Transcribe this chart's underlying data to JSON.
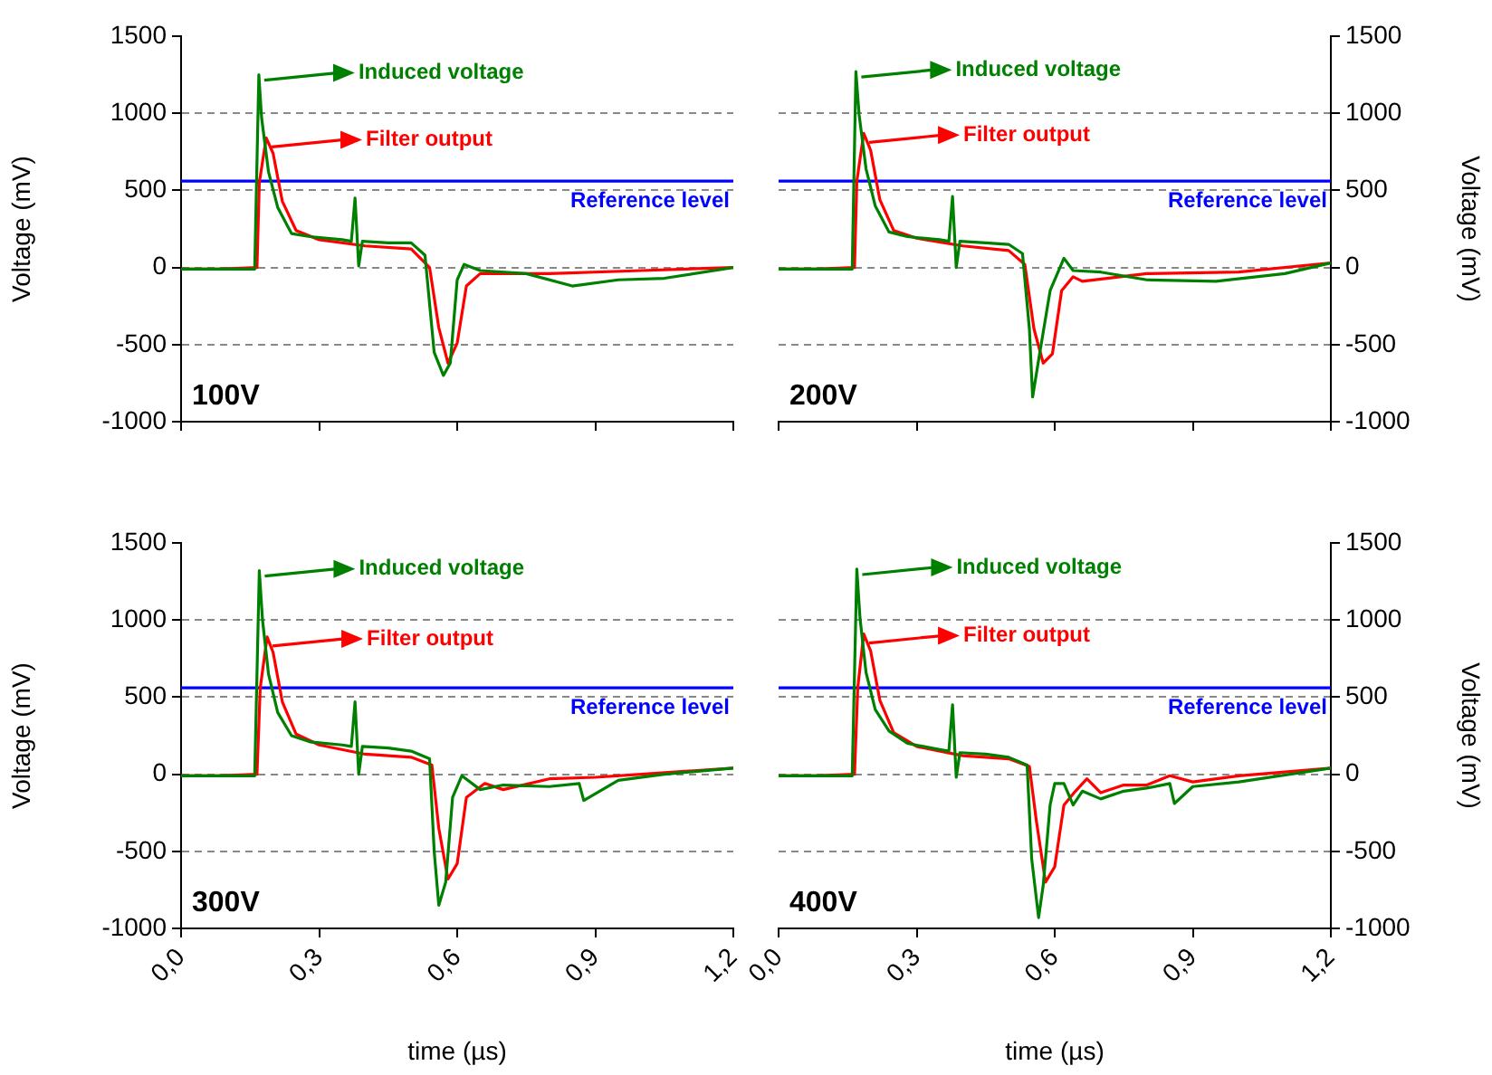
{
  "chart_data": [
    {
      "type": "line",
      "ylabel": "Voltage (mV)",
      "xlim": [
        0,
        1.2
      ],
      "xticks": [
        {
          "value": 0,
          "label": null
        },
        {
          "value": 0.3,
          "label": null
        },
        {
          "value": 0.6,
          "label": null
        },
        {
          "value": 0.9,
          "label": null
        },
        {
          "value": 1.2,
          "label": null
        }
      ],
      "ylim": [
        -1000,
        1500
      ],
      "yticks": [
        -1000,
        -500,
        0,
        500,
        1000,
        1500
      ],
      "tick_labels": "y",
      "grid": "y",
      "legend": "top left",
      "annotations": [
        "100V"
      ],
      "ref_lines": [
        {
          "axis": "y",
          "value": 560,
          "label": "Reference level",
          "color": "#0000ff"
        }
      ],
      "series": [
        {
          "name": "Induced voltage",
          "color": "#008000",
          "x": [
            0,
            0.08,
            0.16,
            0.169,
            0.175,
            0.19,
            0.21,
            0.24,
            0.28,
            0.35,
            0.37,
            0.378,
            0.386,
            0.394,
            0.45,
            0.5,
            0.53,
            0.55,
            0.57,
            0.585,
            0.6,
            0.615,
            0.65,
            0.75,
            0.85,
            0.95,
            1.05,
            1.2
          ],
          "values": [
            -10,
            -10,
            -10,
            1250,
            970,
            620,
            390,
            220,
            200,
            180,
            170,
            450,
            10,
            170,
            160,
            160,
            80,
            -550,
            -700,
            -620,
            -80,
            20,
            -20,
            -40,
            -120,
            -80,
            -70,
            0
          ]
        },
        {
          "name": "Filter output",
          "color": "#ff0000",
          "x": [
            0,
            0.08,
            0.165,
            0.17,
            0.185,
            0.2,
            0.22,
            0.25,
            0.3,
            0.4,
            0.5,
            0.54,
            0.56,
            0.58,
            0.6,
            0.62,
            0.65,
            0.8,
            1.0,
            1.2
          ],
          "values": [
            -10,
            -10,
            0,
            550,
            840,
            740,
            430,
            240,
            180,
            140,
            120,
            0,
            -390,
            -620,
            -490,
            -120,
            -40,
            -40,
            -20,
            0
          ]
        }
      ]
    },
    {
      "type": "line",
      "ylabel": "Voltage (mV)",
      "xlim": [
        0,
        1.2
      ],
      "xticks": [
        {
          "value": 0,
          "label": null
        },
        {
          "value": 0.3,
          "label": null
        },
        {
          "value": 0.6,
          "label": null
        },
        {
          "value": 0.9,
          "label": null
        },
        {
          "value": 1.2,
          "label": null
        }
      ],
      "ylim": [
        -1000,
        1500
      ],
      "yticks": [
        -1000,
        -500,
        0,
        500,
        1000,
        1500
      ],
      "tick_labels": "y",
      "grid": "y",
      "legend": "top left",
      "annotations": [
        "200V"
      ],
      "ref_lines": [
        {
          "axis": "y",
          "value": 560,
          "label": "Reference level",
          "color": "#0000ff"
        }
      ],
      "series": [
        {
          "name": "Induced voltage",
          "color": "#008000",
          "x": [
            0,
            0.08,
            0.16,
            0.168,
            0.175,
            0.19,
            0.21,
            0.24,
            0.28,
            0.35,
            0.37,
            0.378,
            0.386,
            0.394,
            0.45,
            0.5,
            0.53,
            0.545,
            0.552,
            0.565,
            0.59,
            0.62,
            0.64,
            0.7,
            0.8,
            0.95,
            1.1,
            1.2
          ],
          "values": [
            -10,
            -10,
            -10,
            1270,
            990,
            640,
            400,
            230,
            200,
            180,
            170,
            460,
            0,
            170,
            160,
            150,
            90,
            -400,
            -840,
            -600,
            -150,
            60,
            -20,
            -30,
            -80,
            -90,
            -40,
            30
          ]
        },
        {
          "name": "Filter output",
          "color": "#ff0000",
          "x": [
            0,
            0.08,
            0.165,
            0.17,
            0.185,
            0.2,
            0.22,
            0.25,
            0.3,
            0.4,
            0.5,
            0.535,
            0.555,
            0.575,
            0.595,
            0.615,
            0.64,
            0.66,
            0.8,
            1.0,
            1.2
          ],
          "values": [
            -10,
            -10,
            0,
            560,
            870,
            760,
            440,
            240,
            190,
            140,
            110,
            20,
            -400,
            -620,
            -560,
            -150,
            -60,
            -90,
            -40,
            -30,
            30
          ]
        }
      ]
    },
    {
      "type": "line",
      "xlabel": "time (µs)",
      "ylabel": "Voltage (mV)",
      "xlim": [
        0,
        1.2
      ],
      "xticks": [
        {
          "value": 0,
          "label": "0,0"
        },
        {
          "value": 0.3,
          "label": "0,3"
        },
        {
          "value": 0.6,
          "label": "0,6"
        },
        {
          "value": 0.9,
          "label": "0,9"
        },
        {
          "value": 1.2,
          "label": "1,2"
        }
      ],
      "ylim": [
        -1000,
        1500
      ],
      "yticks": [
        -1000,
        -500,
        0,
        500,
        1000,
        1500
      ],
      "grid": "y",
      "legend": "top left",
      "annotations": [
        "300V"
      ],
      "ref_lines": [
        {
          "axis": "y",
          "value": 560,
          "label": "Reference level",
          "color": "#0000ff"
        }
      ],
      "series": [
        {
          "name": "Induced voltage",
          "color": "#008000",
          "x": [
            0,
            0.08,
            0.16,
            0.17,
            0.177,
            0.19,
            0.21,
            0.24,
            0.28,
            0.35,
            0.37,
            0.378,
            0.386,
            0.394,
            0.45,
            0.5,
            0.54,
            0.55,
            0.56,
            0.575,
            0.59,
            0.61,
            0.65,
            0.7,
            0.8,
            0.865,
            0.875,
            0.95,
            1.05,
            1.2
          ],
          "values": [
            -10,
            -10,
            -10,
            1320,
            1000,
            650,
            400,
            250,
            210,
            190,
            180,
            470,
            0,
            180,
            170,
            150,
            100,
            -500,
            -850,
            -700,
            -150,
            -10,
            -100,
            -70,
            -80,
            -60,
            -170,
            -40,
            0,
            40
          ]
        },
        {
          "name": "Filter output",
          "color": "#ff0000",
          "x": [
            0,
            0.08,
            0.165,
            0.172,
            0.187,
            0.2,
            0.22,
            0.25,
            0.3,
            0.4,
            0.5,
            0.545,
            0.56,
            0.58,
            0.6,
            0.62,
            0.66,
            0.7,
            0.8,
            0.9,
            1.0,
            1.2
          ],
          "values": [
            -10,
            -10,
            0,
            560,
            890,
            790,
            470,
            260,
            190,
            130,
            110,
            60,
            -350,
            -680,
            -580,
            -150,
            -60,
            -100,
            -30,
            -20,
            0,
            40
          ]
        }
      ]
    },
    {
      "type": "line",
      "xlabel": "time (µs)",
      "ylabel": "Voltage (mV)",
      "xlim": [
        0,
        1.2
      ],
      "xticks": [
        {
          "value": 0,
          "label": "0,0"
        },
        {
          "value": 0.3,
          "label": "0,3"
        },
        {
          "value": 0.6,
          "label": "0,6"
        },
        {
          "value": 0.9,
          "label": "0,9"
        },
        {
          "value": 1.2,
          "label": "1,2"
        }
      ],
      "ylim": [
        -1000,
        1500
      ],
      "yticks": [
        -1000,
        -500,
        0,
        500,
        1000,
        1500
      ],
      "grid": "y",
      "legend": "top left",
      "annotations": [
        "400V"
      ],
      "ref_lines": [
        {
          "axis": "y",
          "value": 560,
          "label": "Reference level",
          "color": "#0000ff"
        }
      ],
      "series": [
        {
          "name": "Induced voltage",
          "color": "#008000",
          "x": [
            0,
            0.08,
            0.16,
            0.17,
            0.177,
            0.19,
            0.21,
            0.24,
            0.28,
            0.35,
            0.37,
            0.378,
            0.386,
            0.394,
            0.45,
            0.5,
            0.54,
            0.55,
            0.565,
            0.575,
            0.59,
            0.6,
            0.62,
            0.64,
            0.66,
            0.7,
            0.75,
            0.8,
            0.85,
            0.86,
            0.9,
            1.0,
            1.2
          ],
          "values": [
            -10,
            -10,
            -10,
            1330,
            1010,
            660,
            420,
            280,
            200,
            160,
            150,
            450,
            -20,
            140,
            130,
            110,
            60,
            -550,
            -930,
            -720,
            -200,
            -60,
            -60,
            -200,
            -110,
            -160,
            -110,
            -90,
            -60,
            -190,
            -80,
            -50,
            40
          ]
        },
        {
          "name": "Filter output",
          "color": "#ff0000",
          "x": [
            0,
            0.08,
            0.165,
            0.172,
            0.185,
            0.2,
            0.22,
            0.25,
            0.3,
            0.4,
            0.5,
            0.545,
            0.56,
            0.58,
            0.6,
            0.62,
            0.645,
            0.67,
            0.7,
            0.75,
            0.8,
            0.85,
            0.9,
            1.0,
            1.2
          ],
          "values": [
            -10,
            -10,
            0,
            560,
            910,
            800,
            480,
            270,
            180,
            120,
            100,
            50,
            -300,
            -700,
            -600,
            -200,
            -110,
            -30,
            -120,
            -70,
            -70,
            -10,
            -50,
            -10,
            40
          ]
        }
      ]
    }
  ]
}
